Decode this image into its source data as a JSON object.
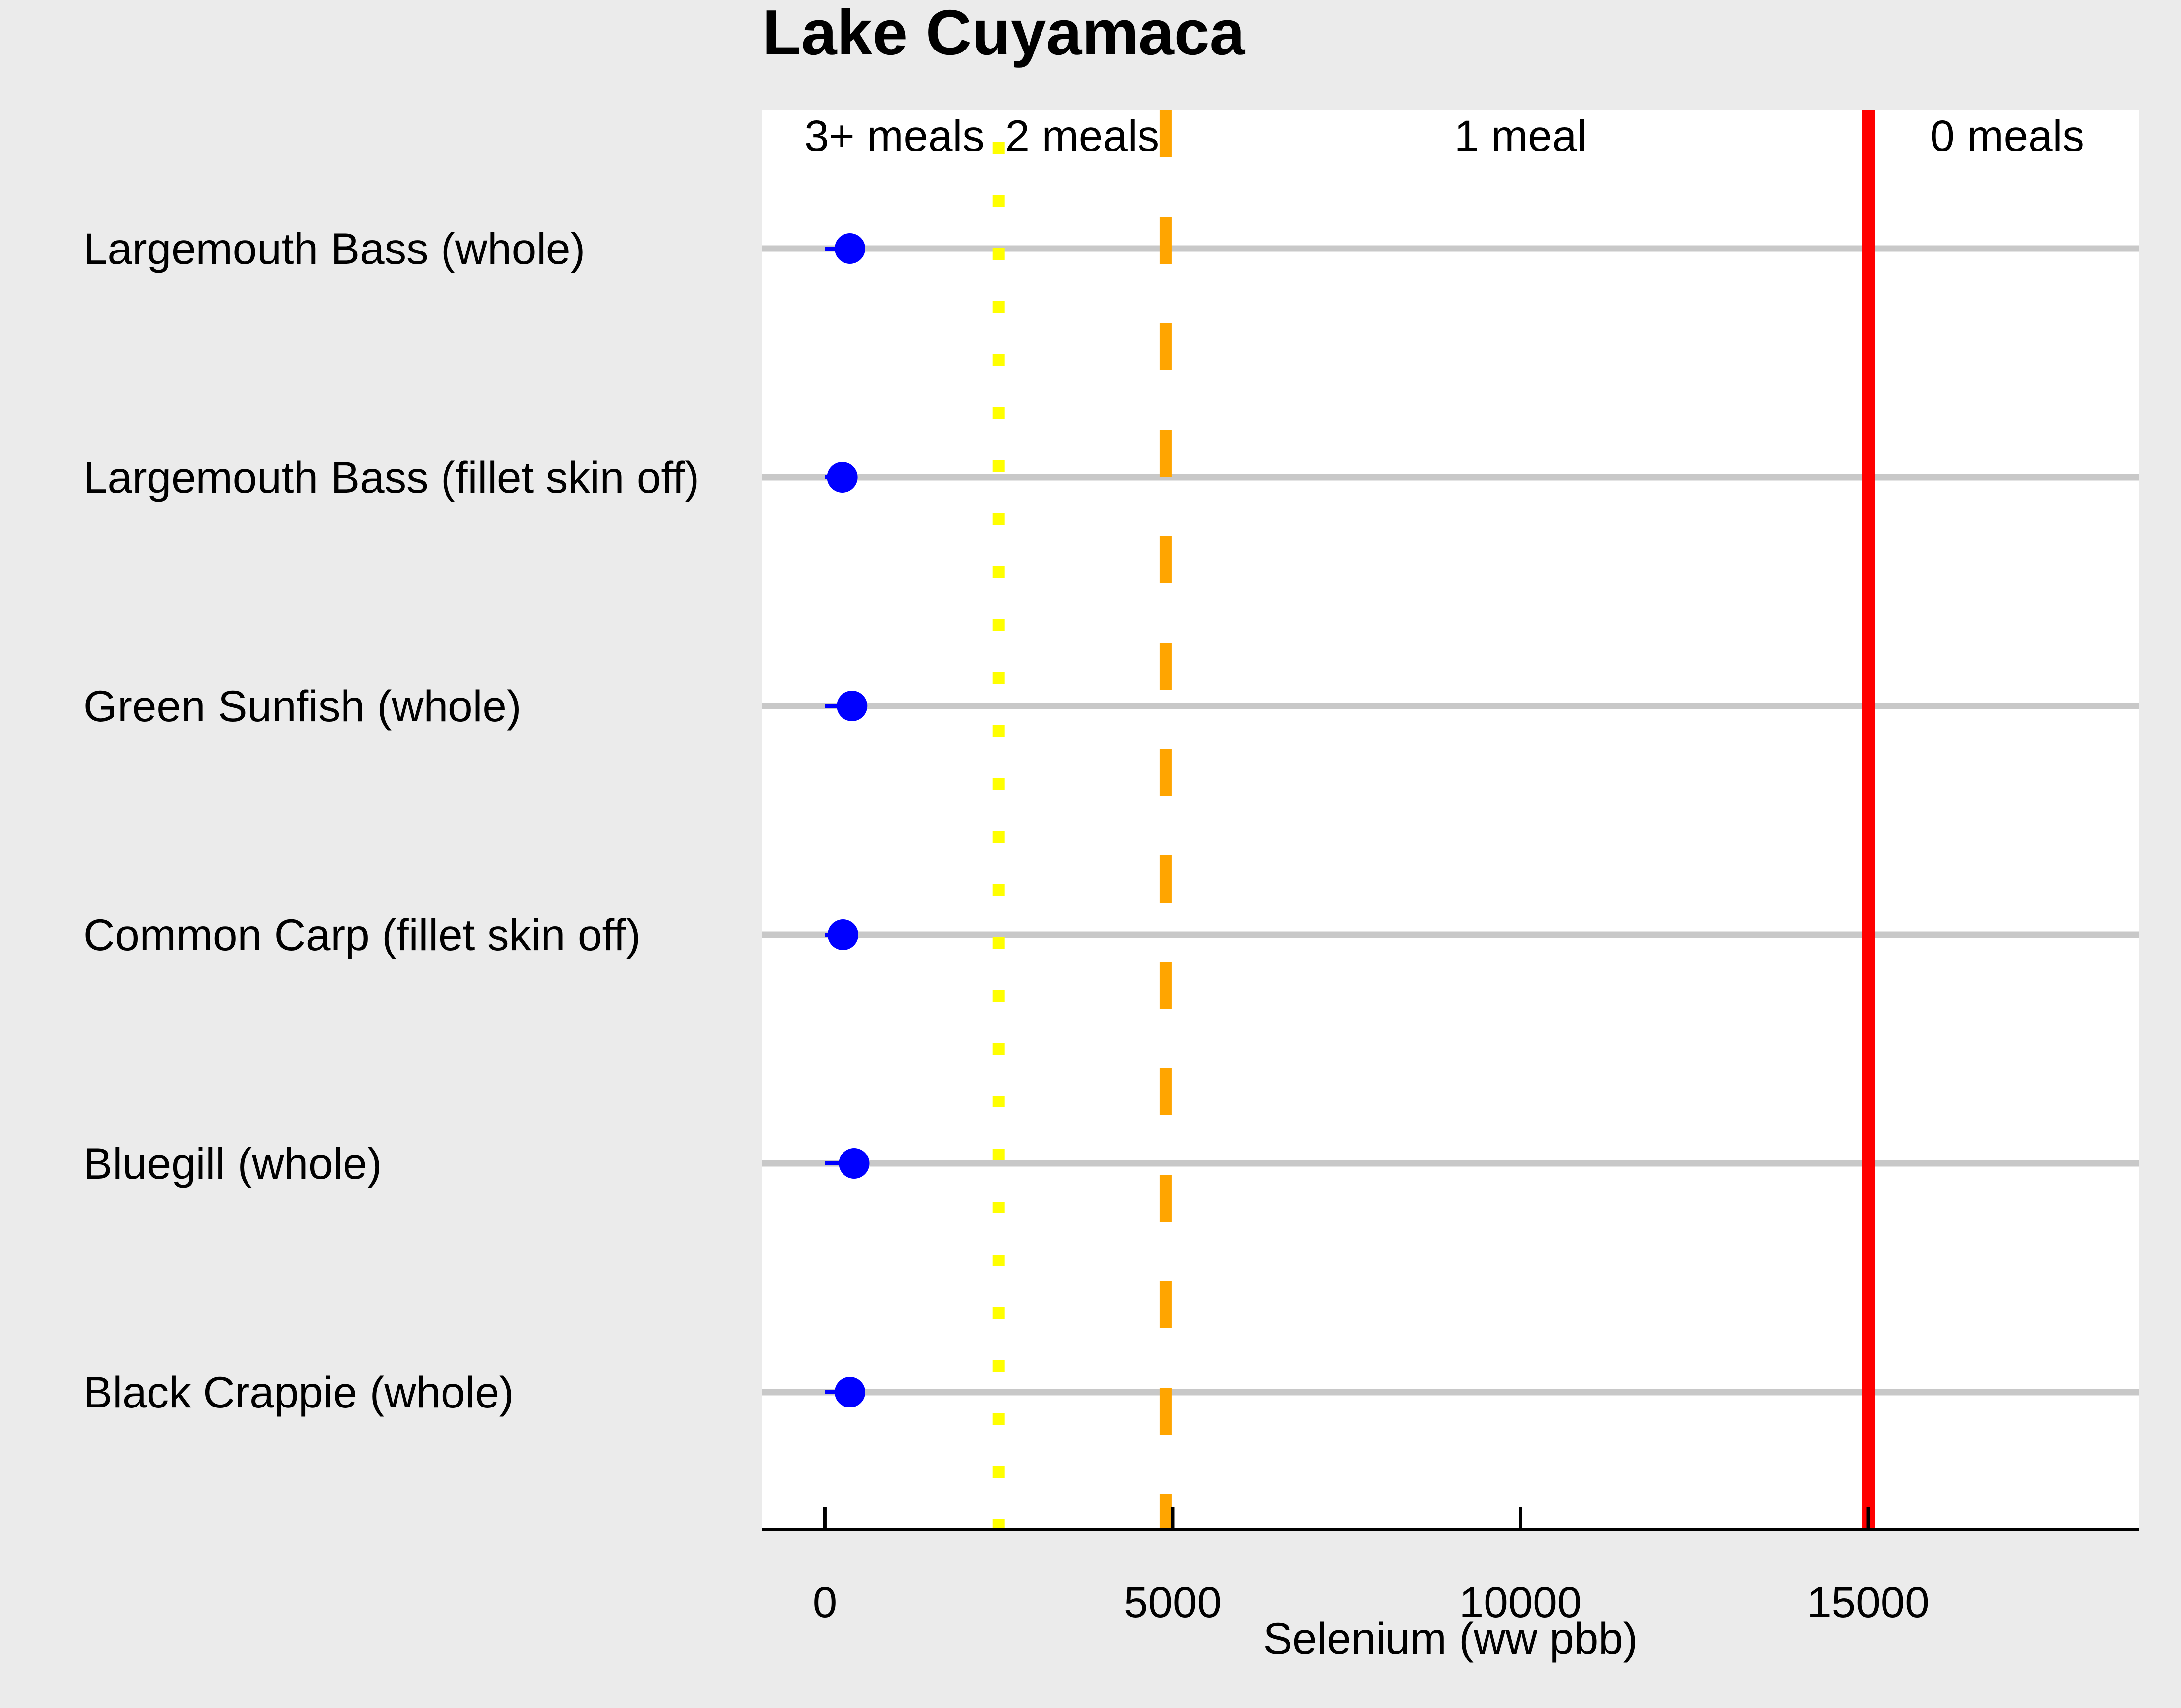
{
  "chart_data": {
    "type": "scatter",
    "title": "Lake Cuyamaca",
    "xlabel": "Selenium (ww pbb)",
    "ylabel": "",
    "xlim": [
      -900,
      18900
    ],
    "xticks": [
      0,
      5000,
      10000,
      15000
    ],
    "categories": [
      "Largemouth Bass (whole)",
      "Largemouth Bass (fillet skin off)",
      "Green Sunfish (whole)",
      "Common Carp (fillet skin off)",
      "Bluegill (whole)",
      "Black Crappie (whole)"
    ],
    "values": [
      360,
      250,
      390,
      260,
      420,
      360
    ],
    "error_low": [
      0,
      0,
      0,
      0,
      0,
      0
    ],
    "thresholds": [
      {
        "value": 2500,
        "color": "#ffff00",
        "style": "dotted"
      },
      {
        "value": 4900,
        "color": "#ffa500",
        "style": "dashed"
      },
      {
        "value": 15000,
        "color": "#ff0000",
        "style": "solid"
      }
    ],
    "zone_labels": [
      {
        "text": "3+ meals",
        "x": 1000
      },
      {
        "text": "2 meals",
        "x": 3700
      },
      {
        "text": "1 meal",
        "x": 10000
      },
      {
        "text": "0 meals",
        "x": 17000
      }
    ],
    "colors": {
      "point": "#0000ff",
      "gridline": "#c8c8c8",
      "panel": "#ffffff",
      "background": "#ebebeb"
    },
    "grid": true
  }
}
